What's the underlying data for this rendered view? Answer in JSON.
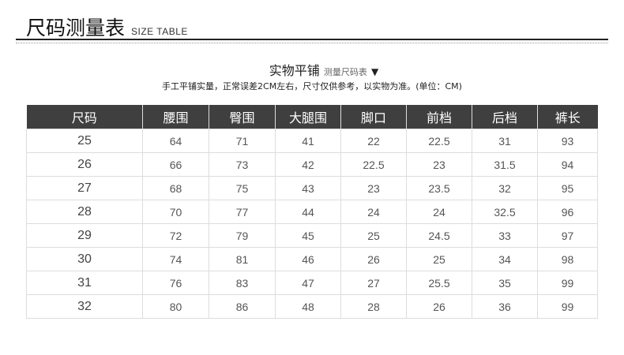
{
  "header": {
    "title": "尺码测量表",
    "subtitle_en": "SIZE TABLE"
  },
  "section": {
    "heading": "实物平铺",
    "heading_small": "测量尺码表",
    "arrow": "▼",
    "note": "手工平铺实量，正常误差2CM左右，尺寸仅供参考，以实物为准。(单位：CM)"
  },
  "table": {
    "columns": [
      "尺码",
      "腰围",
      "臀围",
      "大腿围",
      "脚口",
      "前档",
      "后档",
      "裤长"
    ],
    "rows": [
      [
        "25",
        "64",
        "71",
        "41",
        "22",
        "22.5",
        "31",
        "93"
      ],
      [
        "26",
        "66",
        "73",
        "42",
        "22.5",
        "23",
        "31.5",
        "94"
      ],
      [
        "27",
        "68",
        "75",
        "43",
        "23",
        "23.5",
        "32",
        "95"
      ],
      [
        "28",
        "70",
        "77",
        "44",
        "24",
        "24",
        "32.5",
        "96"
      ],
      [
        "29",
        "72",
        "79",
        "45",
        "25",
        "24.5",
        "33",
        "97"
      ],
      [
        "30",
        "74",
        "81",
        "46",
        "26",
        "25",
        "34",
        "98"
      ],
      [
        "31",
        "76",
        "83",
        "47",
        "27",
        "25.5",
        "35",
        "99"
      ],
      [
        "32",
        "80",
        "86",
        "48",
        "28",
        "26",
        "36",
        "99"
      ]
    ]
  }
}
